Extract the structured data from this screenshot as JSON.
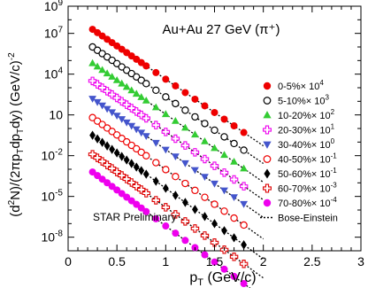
{
  "chart_data": {
    "type": "scatter",
    "title": "Au+Au 27 GeV (π⁺)",
    "annotation": "STAR Preliminary",
    "xlabel_parts": [
      "p",
      "T",
      " (GeV/c)"
    ],
    "ylabel_parts": [
      {
        "t": "(d",
        "s": "n"
      },
      {
        "t": "2",
        "s": "sup"
      },
      {
        "t": "N)/(2πp",
        "s": "n"
      },
      {
        "t": "T",
        "s": "sub"
      },
      {
        "t": "dp",
        "s": "n"
      },
      {
        "t": "T",
        "s": "sub"
      },
      {
        "t": "dy) (GeV/c)",
        "s": "n"
      },
      {
        "t": "-2",
        "s": "sup"
      }
    ],
    "x_scale": "linear",
    "y_scale": "log",
    "xlim": [
      0,
      3
    ],
    "ylim_exp": [
      -9,
      9
    ],
    "x_ticks": [
      0,
      0.5,
      1,
      1.5,
      2,
      2.5,
      3
    ],
    "x_tick_labels": [
      "0",
      "0.5",
      "1",
      "1.5",
      "2",
      "2.5",
      "3"
    ],
    "y_tick_exps": [
      -8,
      -5,
      -2,
      1,
      4,
      7,
      9
    ],
    "y_tick_labels": [
      {
        "base": "10",
        "exp": "-8"
      },
      {
        "base": "10",
        "exp": "-5"
      },
      {
        "base": "10",
        "exp": "-2"
      },
      {
        "base": "10",
        "exp": ""
      },
      {
        "base": "10",
        "exp": "4"
      },
      {
        "base": "10",
        "exp": "7"
      },
      {
        "base": "10",
        "exp": "9"
      }
    ],
    "grid": false,
    "legend_position": "right",
    "x": [
      0.25,
      0.3,
      0.35,
      0.4,
      0.45,
      0.5,
      0.55,
      0.6,
      0.65,
      0.7,
      0.75,
      0.8,
      0.9,
      1.0,
      1.1,
      1.2,
      1.3,
      1.4,
      1.5,
      1.6,
      1.7,
      1.8
    ],
    "fit_x_range": [
      0.25,
      2.0
    ],
    "series": [
      {
        "name": "0-5%×10⁴",
        "label": "0-5%",
        "scale": "× 10",
        "scale_exp": "4",
        "marker": "filled-circle",
        "color": "#ee0000",
        "y0_exp": 7.3,
        "slope": -4.9
      },
      {
        "name": "5-10%×10³",
        "label": "5-10%",
        "scale": "× 10",
        "scale_exp": "3",
        "marker": "open-circle",
        "color": "#000000",
        "y0_exp": 6.0,
        "slope": -4.9
      },
      {
        "name": "10-20%×10²",
        "label": "10-20%",
        "scale": "× 10",
        "scale_exp": "2",
        "marker": "filled-triangle",
        "color": "#33cc33",
        "y0_exp": 4.8,
        "slope": -5.0
      },
      {
        "name": "20-30%×10¹",
        "label": "20-30%",
        "scale": "× 10",
        "scale_exp": "1",
        "marker": "open-cross",
        "color": "#ee00ee",
        "y0_exp": 3.5,
        "slope": -5.0
      },
      {
        "name": "30-40%×10⁰",
        "label": "30-40%",
        "scale": "× 10",
        "scale_exp": "0",
        "marker": "filled-triangle-down",
        "color": "#4455cc",
        "y0_exp": 2.2,
        "slope": -5.0
      },
      {
        "name": "40-50%×10⁻¹",
        "label": "40-50%",
        "scale": "× 10",
        "scale_exp": "-1",
        "marker": "open-circle",
        "color": "#ee0000",
        "y0_exp": 0.8,
        "slope": -5.1
      },
      {
        "name": "50-60%×10⁻¹",
        "label": "50-60%",
        "scale": "× 10",
        "scale_exp": "-1",
        "marker": "filled-diamond",
        "color": "#000000",
        "y0_exp": -0.5,
        "slope": -5.2
      },
      {
        "name": "60-70%×10⁻³",
        "label": "60-70%",
        "scale": "× 10",
        "scale_exp": "-3",
        "marker": "open-cross",
        "color": "#dd0000",
        "y0_exp": -1.9,
        "slope": -5.2
      },
      {
        "name": "70-80%×10⁻⁴",
        "label": "70-80%",
        "scale": "× 10",
        "scale_exp": "-4",
        "marker": "filled-circle",
        "color": "#ee00ee",
        "y0_exp": -3.2,
        "slope": -5.3
      }
    ],
    "fit_legend": {
      "label": "Bose-Einstein",
      "style": "dotted",
      "color": "#000000"
    }
  }
}
